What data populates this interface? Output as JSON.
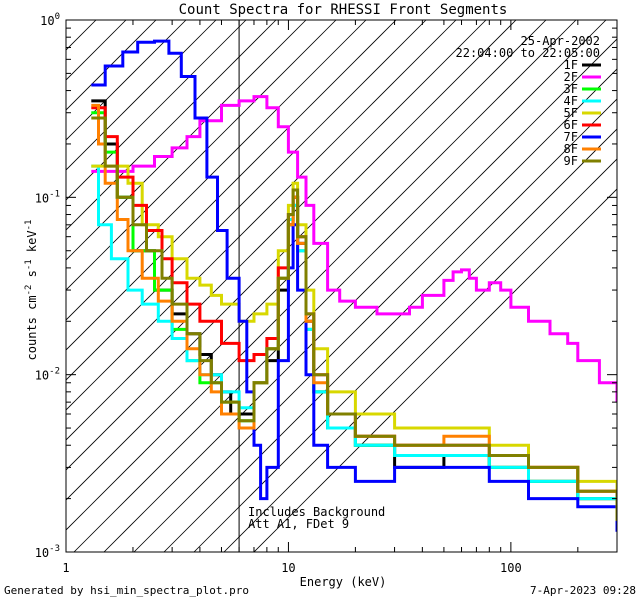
{
  "chart_data": {
    "type": "line",
    "title": "Count Spectra for RHESSI Front Segments",
    "xlabel": "Energy (keV)",
    "ylabel": "counts cm^-2 s^-1 keV^-1",
    "xscale": "log",
    "yscale": "log",
    "xlim": [
      1,
      300
    ],
    "ylim": [
      0.001,
      1
    ],
    "x_ticks": [
      {
        "value": 1,
        "label": "1"
      },
      {
        "value": 10,
        "label": "10"
      },
      {
        "value": 100,
        "label": "100"
      }
    ],
    "y_ticks": [
      {
        "value": 1,
        "base": "10",
        "exp": "0"
      },
      {
        "value": 0.1,
        "base": "10",
        "exp": "-1"
      },
      {
        "value": 0.01,
        "base": "10",
        "exp": "-2"
      },
      {
        "value": 0.001,
        "base": "10",
        "exp": "-3"
      }
    ],
    "date": "25-Apr-2002",
    "time_range": "22:04:00 to 22:05:00",
    "hatched_region_max_energy": 6,
    "annotation": [
      "Includes Background",
      "Att A1, FDet 9"
    ],
    "legend_position": "top-right",
    "series": [
      {
        "name": "1F",
        "color": "#000000",
        "points": [
          [
            1.3,
            0.35
          ],
          [
            1.5,
            0.2
          ],
          [
            1.7,
            0.1
          ],
          [
            2.0,
            0.05
          ],
          [
            2.5,
            0.03
          ],
          [
            3.0,
            0.022
          ],
          [
            3.5,
            0.017
          ],
          [
            4.0,
            0.013
          ],
          [
            4.5,
            0.01
          ],
          [
            5.0,
            0.008
          ],
          [
            5.5,
            0.006
          ],
          [
            6.0,
            0.006
          ],
          [
            7.0,
            0.009
          ],
          [
            8.0,
            0.012
          ],
          [
            9.0,
            0.03
          ],
          [
            10.0,
            0.07
          ],
          [
            10.5,
            0.1
          ],
          [
            11.0,
            0.055
          ],
          [
            12.0,
            0.02
          ],
          [
            13.0,
            0.008
          ],
          [
            15.0,
            0.005
          ],
          [
            20.0,
            0.004
          ],
          [
            30.0,
            0.003
          ],
          [
            50.0,
            0.0035
          ],
          [
            80.0,
            0.003
          ],
          [
            120.0,
            0.0025
          ],
          [
            200.0,
            0.002
          ],
          [
            300.0,
            0.0015
          ]
        ]
      },
      {
        "name": "2F",
        "color": "#ff00ff",
        "points": [
          [
            1.3,
            0.14
          ],
          [
            1.6,
            0.14
          ],
          [
            2.0,
            0.15
          ],
          [
            2.5,
            0.17
          ],
          [
            3.0,
            0.19
          ],
          [
            3.5,
            0.22
          ],
          [
            4.0,
            0.27
          ],
          [
            5.0,
            0.33
          ],
          [
            6.0,
            0.35
          ],
          [
            7.0,
            0.37
          ],
          [
            8.0,
            0.32
          ],
          [
            9.0,
            0.25
          ],
          [
            10.0,
            0.18
          ],
          [
            11.0,
            0.13
          ],
          [
            12.0,
            0.09
          ],
          [
            13.0,
            0.055
          ],
          [
            15.0,
            0.03
          ],
          [
            17.0,
            0.026
          ],
          [
            20.0,
            0.024
          ],
          [
            25.0,
            0.022
          ],
          [
            30.0,
            0.022
          ],
          [
            35.0,
            0.024
          ],
          [
            40.0,
            0.028
          ],
          [
            50.0,
            0.034
          ],
          [
            55.0,
            0.038
          ],
          [
            60.0,
            0.039
          ],
          [
            65.0,
            0.035
          ],
          [
            70.0,
            0.03
          ],
          [
            80.0,
            0.033
          ],
          [
            90.0,
            0.03
          ],
          [
            100.0,
            0.024
          ],
          [
            120.0,
            0.02
          ],
          [
            150.0,
            0.017
          ],
          [
            180.0,
            0.015
          ],
          [
            200.0,
            0.012
          ],
          [
            250.0,
            0.009
          ],
          [
            300.0,
            0.007
          ]
        ]
      },
      {
        "name": "3F",
        "color": "#00ff00",
        "points": [
          [
            1.3,
            0.3
          ],
          [
            1.5,
            0.18
          ],
          [
            1.7,
            0.1
          ],
          [
            2.0,
            0.05
          ],
          [
            2.5,
            0.03
          ],
          [
            3.0,
            0.018
          ],
          [
            3.5,
            0.012
          ],
          [
            4.0,
            0.009
          ],
          [
            5.0,
            0.007
          ],
          [
            6.0,
            0.0055
          ],
          [
            7.0,
            0.009
          ],
          [
            8.0,
            0.014
          ],
          [
            9.0,
            0.035
          ],
          [
            10.0,
            0.075
          ],
          [
            10.5,
            0.09
          ],
          [
            11.0,
            0.05
          ],
          [
            12.0,
            0.018
          ],
          [
            13.0,
            0.008
          ],
          [
            15.0,
            0.005
          ],
          [
            20.0,
            0.004
          ],
          [
            30.0,
            0.0035
          ],
          [
            50.0,
            0.0035
          ],
          [
            80.0,
            0.003
          ],
          [
            120.0,
            0.0025
          ],
          [
            200.0,
            0.002
          ],
          [
            300.0,
            0.0015
          ]
        ]
      },
      {
        "name": "4F",
        "color": "#00ffff",
        "points": [
          [
            1.3,
            0.15
          ],
          [
            1.4,
            0.07
          ],
          [
            1.6,
            0.045
          ],
          [
            1.9,
            0.03
          ],
          [
            2.2,
            0.025
          ],
          [
            2.6,
            0.02
          ],
          [
            3.0,
            0.016
          ],
          [
            3.5,
            0.012
          ],
          [
            4.0,
            0.01
          ],
          [
            5.0,
            0.008
          ],
          [
            6.0,
            0.0065
          ],
          [
            7.0,
            0.009
          ],
          [
            8.0,
            0.014
          ],
          [
            9.0,
            0.035
          ],
          [
            10.0,
            0.075
          ],
          [
            10.5,
            0.09
          ],
          [
            11.0,
            0.05
          ],
          [
            12.0,
            0.018
          ],
          [
            13.0,
            0.008
          ],
          [
            15.0,
            0.005
          ],
          [
            20.0,
            0.004
          ],
          [
            30.0,
            0.0035
          ],
          [
            50.0,
            0.0035
          ],
          [
            80.0,
            0.003
          ],
          [
            120.0,
            0.0025
          ],
          [
            200.0,
            0.002
          ],
          [
            300.0,
            0.0015
          ]
        ]
      },
      {
        "name": "5F",
        "color": "#d8d800",
        "points": [
          [
            1.3,
            0.15
          ],
          [
            1.6,
            0.15
          ],
          [
            1.9,
            0.12
          ],
          [
            2.2,
            0.07
          ],
          [
            2.6,
            0.06
          ],
          [
            3.0,
            0.045
          ],
          [
            3.5,
            0.035
          ],
          [
            4.0,
            0.032
          ],
          [
            4.5,
            0.028
          ],
          [
            5.0,
            0.025
          ],
          [
            6.0,
            0.02
          ],
          [
            7.0,
            0.022
          ],
          [
            8.0,
            0.025
          ],
          [
            9.0,
            0.05
          ],
          [
            10.0,
            0.09
          ],
          [
            10.5,
            0.12
          ],
          [
            11.0,
            0.07
          ],
          [
            12.0,
            0.03
          ],
          [
            13.0,
            0.014
          ],
          [
            15.0,
            0.008
          ],
          [
            20.0,
            0.006
          ],
          [
            30.0,
            0.005
          ],
          [
            50.0,
            0.005
          ],
          [
            80.0,
            0.004
          ],
          [
            120.0,
            0.003
          ],
          [
            200.0,
            0.0025
          ],
          [
            300.0,
            0.002
          ]
        ]
      },
      {
        "name": "6F",
        "color": "#ff0000",
        "points": [
          [
            1.3,
            0.32
          ],
          [
            1.5,
            0.22
          ],
          [
            1.7,
            0.13
          ],
          [
            2.0,
            0.09
          ],
          [
            2.3,
            0.065
          ],
          [
            2.7,
            0.045
          ],
          [
            3.0,
            0.033
          ],
          [
            3.5,
            0.025
          ],
          [
            4.0,
            0.02
          ],
          [
            5.0,
            0.015
          ],
          [
            6.0,
            0.012
          ],
          [
            7.0,
            0.013
          ],
          [
            8.0,
            0.016
          ],
          [
            9.0,
            0.04
          ],
          [
            10.0,
            0.08
          ],
          [
            10.5,
            0.1
          ],
          [
            11.0,
            0.06
          ],
          [
            12.0,
            0.022
          ],
          [
            13.0,
            0.01
          ],
          [
            15.0,
            0.006
          ],
          [
            20.0,
            0.0045
          ],
          [
            30.0,
            0.004
          ],
          [
            50.0,
            0.004
          ],
          [
            80.0,
            0.0035
          ],
          [
            120.0,
            0.003
          ],
          [
            200.0,
            0.0022
          ],
          [
            300.0,
            0.0015
          ]
        ]
      },
      {
        "name": "7F",
        "color": "#0000ff",
        "points": [
          [
            1.3,
            0.43
          ],
          [
            1.5,
            0.55
          ],
          [
            1.8,
            0.66
          ],
          [
            2.1,
            0.75
          ],
          [
            2.5,
            0.76
          ],
          [
            2.9,
            0.65
          ],
          [
            3.3,
            0.48
          ],
          [
            3.8,
            0.28
          ],
          [
            4.3,
            0.13
          ],
          [
            4.8,
            0.065
          ],
          [
            5.3,
            0.035
          ],
          [
            6.0,
            0.02
          ],
          [
            6.5,
            0.008
          ],
          [
            7.0,
            0.004
          ],
          [
            7.5,
            0.002
          ],
          [
            8.0,
            0.003
          ],
          [
            9.0,
            0.012
          ],
          [
            10.0,
            0.04
          ],
          [
            10.5,
            0.07
          ],
          [
            11.0,
            0.03
          ],
          [
            12.0,
            0.01
          ],
          [
            13.0,
            0.004
          ],
          [
            15.0,
            0.003
          ],
          [
            20.0,
            0.0025
          ],
          [
            30.0,
            0.003
          ],
          [
            50.0,
            0.003
          ],
          [
            80.0,
            0.0025
          ],
          [
            120.0,
            0.002
          ],
          [
            200.0,
            0.0018
          ],
          [
            300.0,
            0.0013
          ]
        ]
      },
      {
        "name": "8F",
        "color": "#ff8000",
        "points": [
          [
            1.3,
            0.33
          ],
          [
            1.4,
            0.2
          ],
          [
            1.5,
            0.12
          ],
          [
            1.7,
            0.075
          ],
          [
            1.9,
            0.05
          ],
          [
            2.2,
            0.035
          ],
          [
            2.6,
            0.026
          ],
          [
            3.0,
            0.02
          ],
          [
            3.5,
            0.014
          ],
          [
            4.0,
            0.01
          ],
          [
            4.5,
            0.008
          ],
          [
            5.0,
            0.006
          ],
          [
            6.0,
            0.005
          ],
          [
            7.0,
            0.009
          ],
          [
            8.0,
            0.014
          ],
          [
            9.0,
            0.035
          ],
          [
            10.0,
            0.07
          ],
          [
            10.5,
            0.1
          ],
          [
            11.0,
            0.055
          ],
          [
            12.0,
            0.02
          ],
          [
            13.0,
            0.009
          ],
          [
            15.0,
            0.006
          ],
          [
            20.0,
            0.0045
          ],
          [
            30.0,
            0.004
          ],
          [
            50.0,
            0.0045
          ],
          [
            80.0,
            0.0035
          ],
          [
            120.0,
            0.003
          ],
          [
            200.0,
            0.0022
          ],
          [
            300.0,
            0.0015
          ]
        ]
      },
      {
        "name": "9F",
        "color": "#808000",
        "points": [
          [
            1.3,
            0.28
          ],
          [
            1.5,
            0.15
          ],
          [
            1.7,
            0.1
          ],
          [
            2.0,
            0.07
          ],
          [
            2.3,
            0.05
          ],
          [
            2.7,
            0.035
          ],
          [
            3.0,
            0.025
          ],
          [
            3.5,
            0.017
          ],
          [
            4.0,
            0.012
          ],
          [
            4.5,
            0.009
          ],
          [
            5.0,
            0.007
          ],
          [
            6.0,
            0.0055
          ],
          [
            7.0,
            0.009
          ],
          [
            8.0,
            0.014
          ],
          [
            9.0,
            0.035
          ],
          [
            10.0,
            0.08
          ],
          [
            10.5,
            0.11
          ],
          [
            11.0,
            0.06
          ],
          [
            12.0,
            0.022
          ],
          [
            13.0,
            0.01
          ],
          [
            15.0,
            0.006
          ],
          [
            20.0,
            0.0045
          ],
          [
            30.0,
            0.004
          ],
          [
            50.0,
            0.004
          ],
          [
            80.0,
            0.0035
          ],
          [
            120.0,
            0.003
          ],
          [
            200.0,
            0.0022
          ],
          [
            300.0,
            0.0015
          ]
        ]
      }
    ]
  },
  "footer": {
    "generated_by": "Generated by hsi_min_spectra_plot.pro",
    "timestamp": "7-Apr-2023 09:28"
  }
}
